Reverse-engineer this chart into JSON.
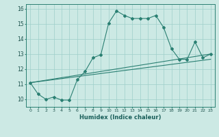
{
  "xlabel": "Humidex (Indice chaleur)",
  "ylabel": "",
  "background_color": "#cce9e4",
  "grid_color": "#9ecfca",
  "line_color": "#2a7f72",
  "xlim": [
    -0.5,
    23.5
  ],
  "ylim": [
    9.5,
    16.3
  ],
  "xticks": [
    0,
    1,
    2,
    3,
    4,
    5,
    6,
    7,
    8,
    9,
    10,
    11,
    12,
    13,
    14,
    15,
    16,
    17,
    18,
    19,
    20,
    21,
    22,
    23
  ],
  "yticks": [
    10,
    11,
    12,
    13,
    14,
    15,
    16
  ],
  "curve_x": [
    0,
    1,
    2,
    3,
    4,
    5,
    6,
    7,
    8,
    9,
    10,
    11,
    12,
    13,
    14,
    15,
    16,
    17,
    18,
    19,
    20,
    21,
    22,
    23
  ],
  "curve_y": [
    11.1,
    10.35,
    10.0,
    10.15,
    9.95,
    9.95,
    11.3,
    11.85,
    12.75,
    12.95,
    15.05,
    15.85,
    15.55,
    15.35,
    15.35,
    15.35,
    15.55,
    14.75,
    13.35,
    12.65,
    12.65,
    13.8,
    12.75,
    13.0
  ],
  "line1_x": [
    0,
    23
  ],
  "line1_y": [
    11.1,
    13.0
  ],
  "line2_x": [
    0,
    23
  ],
  "line2_y": [
    11.1,
    12.65
  ]
}
